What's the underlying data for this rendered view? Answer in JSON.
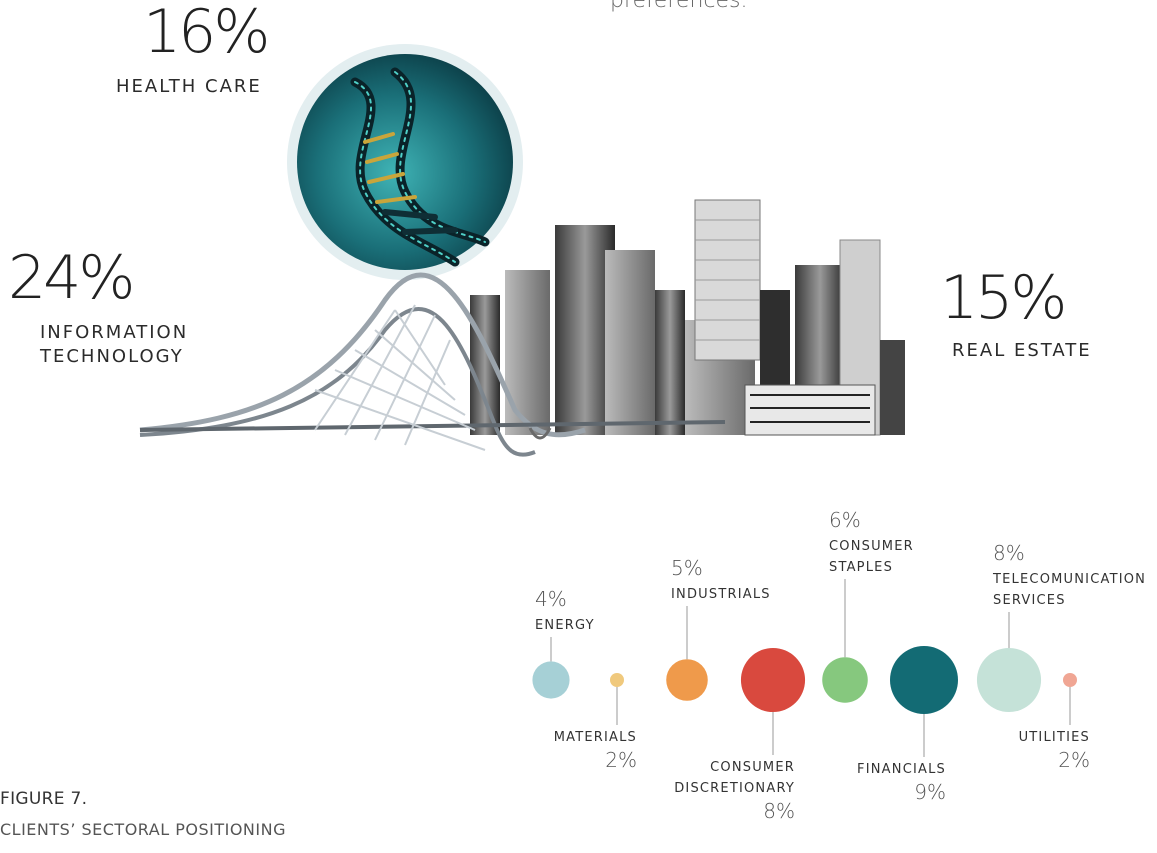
{
  "header": {
    "fragment": "preferences."
  },
  "highlights": {
    "health_care": {
      "pct": "16%",
      "label": "HEALTH CARE"
    },
    "it": {
      "pct": "24%",
      "label_line1": "INFORMATION",
      "label_line2": "TECHNOLOGY"
    },
    "real_estate": {
      "pct": "15%",
      "label": "REAL ESTATE"
    }
  },
  "figure": {
    "title": "FIGURE 7.",
    "subtitle": "CLIENTS’ SECTORAL POSITIONING"
  },
  "chart_data": {
    "type": "bubble",
    "title": "CLIENTS’ SECTORAL POSITIONING",
    "series": [
      {
        "name": "ENERGY",
        "label_lines": [
          "ENERGY"
        ],
        "value": 4,
        "pct": "4%",
        "color": "#a6d0d6",
        "label_pos": "above"
      },
      {
        "name": "MATERIALS",
        "label_lines": [
          "MATERIALS"
        ],
        "value": 2,
        "pct": "2%",
        "color": "#f0c97d",
        "label_pos": "below"
      },
      {
        "name": "INDUSTRIALS",
        "label_lines": [
          "INDUSTRIALS"
        ],
        "value": 5,
        "pct": "5%",
        "color": "#ef9a4b",
        "label_pos": "above"
      },
      {
        "name": "CONSUMER DISCRETIONARY",
        "label_lines": [
          "CONSUMER",
          "DISCRETIONARY"
        ],
        "value": 8,
        "pct": "8%",
        "color": "#d9493e",
        "label_pos": "below"
      },
      {
        "name": "CONSUMER STAPLES",
        "label_lines": [
          "CONSUMER",
          "STAPLES"
        ],
        "value": 6,
        "pct": "6%",
        "color": "#86c87e",
        "label_pos": "above"
      },
      {
        "name": "FINANCIALS",
        "label_lines": [
          "FINANCIALS"
        ],
        "value": 9,
        "pct": "9%",
        "color": "#136b74",
        "label_pos": "below"
      },
      {
        "name": "TELECOMUNICATION SERVICES",
        "label_lines": [
          "TELECOMUNICATION",
          "SERVICES"
        ],
        "value": 8,
        "pct": "8%",
        "color": "#c5e2d8",
        "label_pos": "above"
      },
      {
        "name": "UTILITIES",
        "label_lines": [
          "UTILITIES"
        ],
        "value": 2,
        "pct": "2%",
        "color": "#f0a694",
        "label_pos": "below"
      }
    ]
  }
}
